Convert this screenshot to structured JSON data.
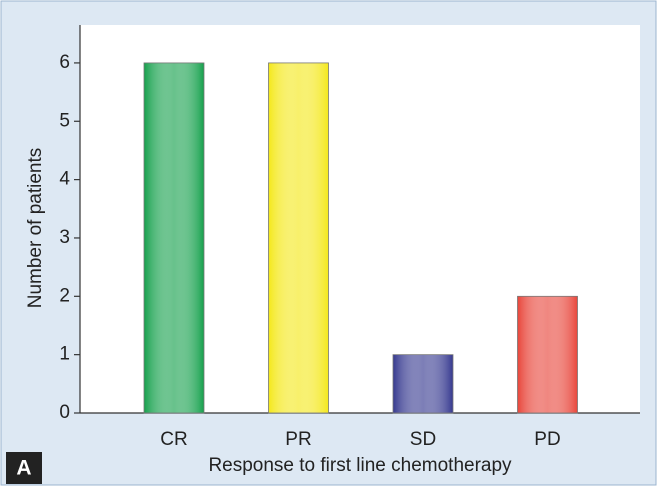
{
  "chart_data": {
    "type": "bar",
    "panel_label": "A",
    "x_label": "Response to first line chemotherapy",
    "y_label": "Number of patients",
    "categories": [
      "CR",
      "PR",
      "SD",
      "PD"
    ],
    "values": [
      6,
      6,
      1,
      2
    ],
    "colors": [
      "#15a04c",
      "#f4e81a",
      "#35388f",
      "#e8453a"
    ],
    "ylim": [
      0,
      6.65
    ],
    "yticks": [
      0,
      1,
      2,
      3,
      4,
      5,
      6
    ],
    "grid": false
  }
}
